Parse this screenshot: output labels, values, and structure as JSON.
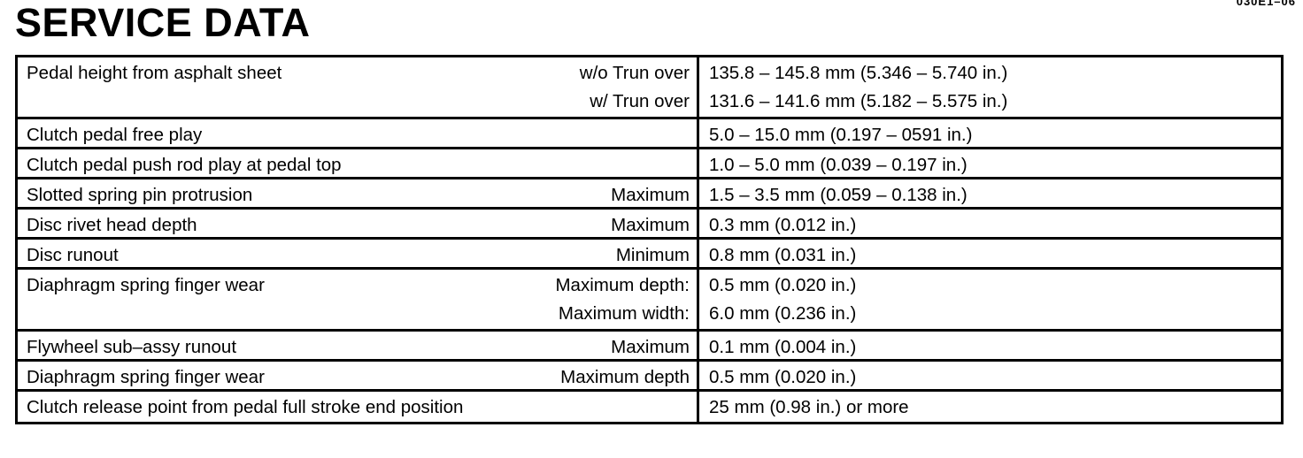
{
  "page": {
    "title": "SERVICE DATA",
    "code": "030E1–06"
  },
  "table": {
    "rows": [
      {
        "label": "Pedal height from asphalt sheet",
        "conditions": [
          "w/o Trun over",
          "w/ Trun over"
        ],
        "values": [
          "135.8 – 145.8 mm (5.346 – 5.740 in.)",
          "131.6 – 141.6 mm (5.182 – 5.575 in.)"
        ]
      },
      {
        "label": "Clutch pedal free play",
        "conditions": [],
        "values": [
          "5.0 – 15.0 mm (0.197 – 0591 in.)"
        ]
      },
      {
        "label": "Clutch pedal push rod play at pedal top",
        "conditions": [],
        "values": [
          "1.0 – 5.0 mm (0.039 – 0.197 in.)"
        ]
      },
      {
        "label": "Slotted spring pin protrusion",
        "conditions": [
          "Maximum"
        ],
        "values": [
          "1.5 – 3.5 mm (0.059 – 0.138 in.)"
        ]
      },
      {
        "label": "Disc rivet head depth",
        "conditions": [
          "Maximum"
        ],
        "values": [
          "0.3 mm (0.012 in.)"
        ]
      },
      {
        "label": "Disc runout",
        "conditions": [
          "Minimum"
        ],
        "values": [
          "0.8 mm (0.031 in.)"
        ]
      },
      {
        "label": "Diaphragm spring finger wear",
        "conditions": [
          "Maximum depth:",
          "Maximum width:"
        ],
        "values": [
          "0.5 mm (0.020 in.)",
          "6.0 mm (0.236 in.)"
        ]
      },
      {
        "label": "Flywheel sub–assy runout",
        "conditions": [
          "Maximum"
        ],
        "values": [
          "0.1 mm (0.004 in.)"
        ]
      },
      {
        "label": "Diaphragm spring finger wear",
        "conditions": [
          "Maximum depth"
        ],
        "values": [
          "0.5 mm (0.020 in.)"
        ]
      },
      {
        "label": "Clutch release point from pedal full stroke end position",
        "conditions": [],
        "values": [
          "25 mm (0.98 in.) or more"
        ]
      }
    ]
  }
}
